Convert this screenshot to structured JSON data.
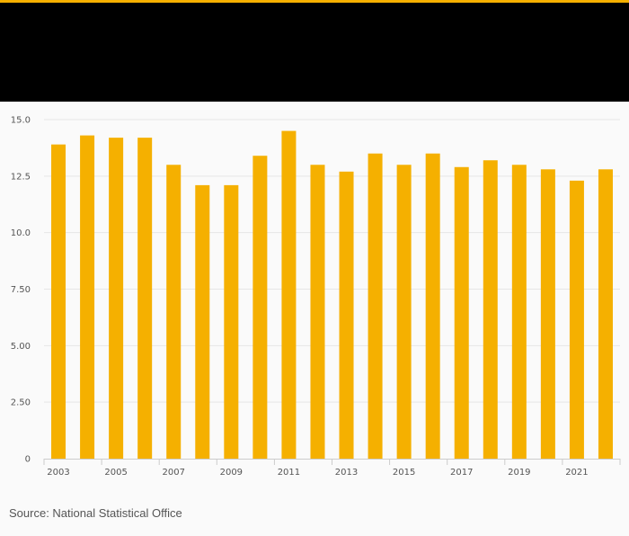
{
  "colors": {
    "bar": "#f5b000",
    "header_bg": "#000000",
    "accent_line": "#f5b000",
    "grid": "#e6e6e6",
    "axis": "#cccccc",
    "text": "#555555"
  },
  "source": "Source: National Statistical Office",
  "chart_data": {
    "type": "bar",
    "title": "",
    "xlabel": "",
    "ylabel": "",
    "categories": [
      "2003",
      "2004",
      "2005",
      "2006",
      "2007",
      "2008",
      "2009",
      "2010",
      "2011",
      "2012",
      "2013",
      "2014",
      "2015",
      "2016",
      "2017",
      "2018",
      "2019",
      "2020",
      "2021",
      "2022"
    ],
    "x_tick_labels": [
      "2003",
      "",
      "2005",
      "",
      "2007",
      "",
      "2009",
      "",
      "2011",
      "",
      "2013",
      "",
      "2015",
      "",
      "2017",
      "",
      "2019",
      "",
      "2021",
      ""
    ],
    "values": [
      13.9,
      14.3,
      14.2,
      14.2,
      13.0,
      12.1,
      12.1,
      13.4,
      14.5,
      13.0,
      12.7,
      13.5,
      13.0,
      13.5,
      12.9,
      13.2,
      13.0,
      12.8,
      12.3,
      12.8
    ],
    "ylim": [
      0,
      15
    ],
    "y_ticks": [
      {
        "value": 0,
        "label": "0"
      },
      {
        "value": 2.5,
        "label": "2.50"
      },
      {
        "value": 5,
        "label": "5.00"
      },
      {
        "value": 7.5,
        "label": "7.50"
      },
      {
        "value": 10,
        "label": "10.0"
      },
      {
        "value": 12.5,
        "label": "12.5"
      },
      {
        "value": 15,
        "label": "15.0"
      }
    ],
    "grid": true,
    "legend": "none"
  }
}
